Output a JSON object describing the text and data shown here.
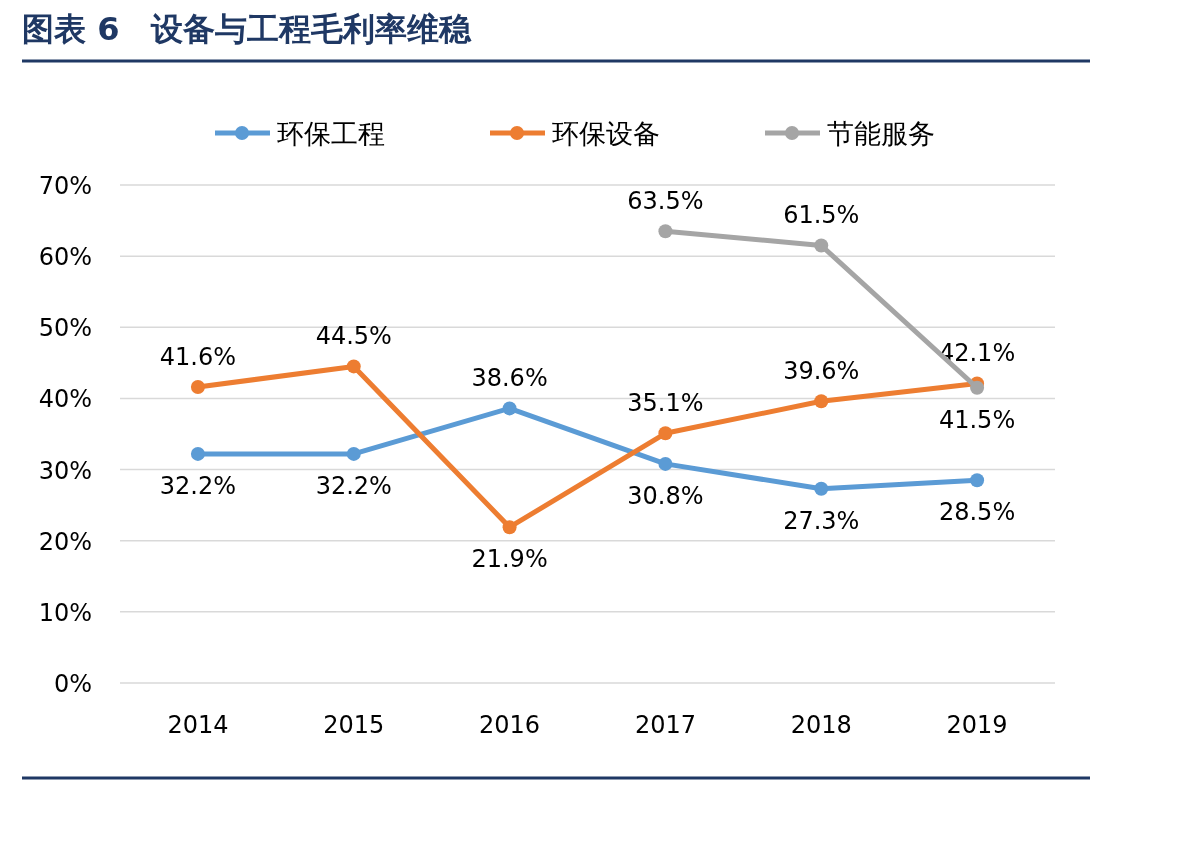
{
  "chart_data": {
    "type": "line",
    "title": "图表 6　设备与工程毛利率维稳",
    "categories": [
      "2014",
      "2015",
      "2016",
      "2017",
      "2018",
      "2019"
    ],
    "series": [
      {
        "name": "环保工程",
        "color": "#5b9bd5",
        "values": [
          32.2,
          32.2,
          38.6,
          30.8,
          27.3,
          28.5
        ],
        "value_labels": [
          "32.2%",
          "32.2%",
          "38.6%",
          "30.8%",
          "27.3%",
          "28.5%"
        ]
      },
      {
        "name": "环保设备",
        "color": "#ed7d31",
        "values": [
          41.6,
          44.5,
          21.9,
          35.1,
          39.6,
          42.1
        ],
        "value_labels": [
          "41.6%",
          "44.5%",
          "21.9%",
          "35.1%",
          "39.6%",
          "42.1%"
        ]
      },
      {
        "name": "节能服务",
        "color": "#a5a5a5",
        "values": [
          null,
          null,
          null,
          63.5,
          61.5,
          41.5
        ],
        "value_labels": [
          null,
          null,
          null,
          "63.5%",
          "61.5%",
          "41.5%"
        ]
      }
    ],
    "ylim": [
      0,
      70
    ],
    "yticks": [
      {
        "value": 0,
        "label": "0%"
      },
      {
        "value": 10,
        "label": "10%"
      },
      {
        "value": 20,
        "label": "20%"
      },
      {
        "value": 30,
        "label": "30%"
      },
      {
        "value": 40,
        "label": "40%"
      },
      {
        "value": 50,
        "label": "50%"
      },
      {
        "value": 60,
        "label": "60%"
      },
      {
        "value": 70,
        "label": "70%"
      }
    ],
    "grid": "y",
    "legend": "top",
    "marker": "circle",
    "line_style": "solid"
  }
}
